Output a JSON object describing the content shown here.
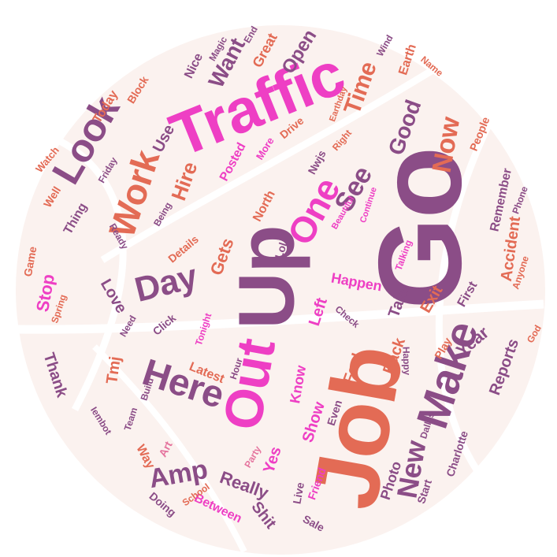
{
  "colors": {
    "background": "#ffffff",
    "ball": "#fbf2ef",
    "seam": "#ffffff",
    "pink": "#ee3fc4",
    "plum": "#8b4d87",
    "coral": "#e36b55",
    "rose": "#e5749e",
    "purple": "#9a4f9c"
  },
  "words": [
    {
      "text": "Go",
      "color": "plum",
      "weight": 20
    },
    {
      "text": "Job",
      "color": "coral",
      "weight": 18
    },
    {
      "text": "Traffic",
      "color": "pink",
      "weight": 16
    },
    {
      "text": "Up",
      "color": "plum",
      "weight": 15
    },
    {
      "text": "Out",
      "color": "pink",
      "weight": 12
    },
    {
      "text": "Make",
      "color": "plum",
      "weight": 11
    },
    {
      "text": "Here",
      "color": "plum",
      "weight": 11
    },
    {
      "text": "Look",
      "color": "plum",
      "weight": 10
    },
    {
      "text": "Work",
      "color": "coral",
      "weight": 10
    },
    {
      "text": "One",
      "color": "pink",
      "weight": 10
    },
    {
      "text": "Day",
      "color": "plum",
      "weight": 9
    },
    {
      "text": "New",
      "color": "plum",
      "weight": 9
    },
    {
      "text": "Now",
      "color": "coral",
      "weight": 8
    },
    {
      "text": "See",
      "color": "plum",
      "weight": 8
    },
    {
      "text": "Amp",
      "color": "plum",
      "weight": 8
    },
    {
      "text": "Time",
      "color": "coral",
      "weight": 8
    },
    {
      "text": "Good",
      "color": "plum",
      "weight": 7
    },
    {
      "text": "Want",
      "color": "plum",
      "weight": 7
    },
    {
      "text": "Hire",
      "color": "coral",
      "weight": 7
    },
    {
      "text": "Accident",
      "color": "coral",
      "weight": 6
    },
    {
      "text": "Open",
      "color": "plum",
      "weight": 6
    },
    {
      "text": "Reports",
      "color": "plum",
      "weight": 6
    },
    {
      "text": "Year",
      "color": "plum",
      "weight": 6
    },
    {
      "text": "Stop",
      "color": "pink",
      "weight": 6
    },
    {
      "text": "Gets",
      "color": "coral",
      "weight": 6
    },
    {
      "text": "Show",
      "color": "pink",
      "weight": 5
    },
    {
      "text": "Yes",
      "color": "pink",
      "weight": 5
    },
    {
      "text": "Love",
      "color": "plum",
      "weight": 5
    },
    {
      "text": "Happen",
      "color": "pink",
      "weight": 5
    },
    {
      "text": "Take",
      "color": "plum",
      "weight": 5
    },
    {
      "text": "Exit",
      "color": "coral",
      "weight": 5
    },
    {
      "text": "Left",
      "color": "pink",
      "weight": 5
    },
    {
      "text": "Feel",
      "color": "coral",
      "weight": 5
    },
    {
      "text": "Back",
      "color": "coral",
      "weight": 5
    },
    {
      "text": "Know",
      "color": "pink",
      "weight": 4
    },
    {
      "text": "Latest",
      "color": "coral",
      "weight": 4
    },
    {
      "text": "Tmj",
      "color": "coral",
      "weight": 5
    },
    {
      "text": "Really",
      "color": "plum",
      "weight": 5
    },
    {
      "text": "Shit",
      "color": "plum",
      "weight": 5
    },
    {
      "text": "Photo",
      "color": "plum",
      "weight": 4
    },
    {
      "text": "Great",
      "color": "coral",
      "weight": 4
    },
    {
      "text": "Today",
      "color": "coral",
      "weight": 4
    },
    {
      "text": "Use",
      "color": "plum",
      "weight": 4
    },
    {
      "text": "Posted",
      "color": "pink",
      "weight": 4
    },
    {
      "text": "Earth",
      "color": "coral",
      "weight": 4
    },
    {
      "text": "Block",
      "color": "coral",
      "weight": 3
    },
    {
      "text": "Nice",
      "color": "plum",
      "weight": 3
    },
    {
      "text": "Thank",
      "color": "plum",
      "weight": 4
    },
    {
      "text": "Well",
      "color": "coral",
      "weight": 3
    },
    {
      "text": "Thing",
      "color": "plum",
      "weight": 3
    },
    {
      "text": "North",
      "color": "coral",
      "weight": 3
    },
    {
      "text": "Lol",
      "color": "plum",
      "weight": 3
    },
    {
      "text": "Details",
      "color": "coral",
      "weight": 3
    },
    {
      "text": "First",
      "color": "plum",
      "weight": 3
    },
    {
      "text": "Remember",
      "color": "plum",
      "weight": 3
    },
    {
      "text": "Click",
      "color": "plum",
      "weight": 3
    },
    {
      "text": "Way",
      "color": "coral",
      "weight": 3
    },
    {
      "text": "Art",
      "color": "rose",
      "weight": 3
    },
    {
      "text": "Doing",
      "color": "plum",
      "weight": 3
    },
    {
      "text": "Between",
      "color": "pink",
      "weight": 3
    },
    {
      "text": "Sale",
      "color": "plum",
      "weight": 3
    },
    {
      "text": "Live",
      "color": "plum",
      "weight": 3
    },
    {
      "text": "Friend",
      "color": "pink",
      "weight": 3
    },
    {
      "text": "Start",
      "color": "plum",
      "weight": 3
    },
    {
      "text": "Charlotte",
      "color": "plum",
      "weight": 3
    },
    {
      "text": "Dallas",
      "color": "plum",
      "weight": 2
    },
    {
      "text": "Even",
      "color": "plum",
      "weight": 3
    },
    {
      "text": "Build",
      "color": "plum",
      "weight": 2
    },
    {
      "text": "Team",
      "color": "plum",
      "weight": 2
    },
    {
      "text": "Hour",
      "color": "plum",
      "weight": 2
    },
    {
      "text": "Play",
      "color": "coral",
      "weight": 3
    },
    {
      "text": "Happy",
      "color": "plum",
      "weight": 2
    },
    {
      "text": "God",
      "color": "coral",
      "weight": 2
    },
    {
      "text": "Party",
      "color": "rose",
      "weight": 2
    },
    {
      "text": "School",
      "color": "coral",
      "weight": 2
    },
    {
      "text": "Game",
      "color": "coral",
      "weight": 3
    },
    {
      "text": "Spring",
      "color": "coral",
      "weight": 2
    },
    {
      "text": "Need",
      "color": "plum",
      "weight": 2
    },
    {
      "text": "Tonight",
      "color": "pink",
      "weight": 2
    },
    {
      "text": "Check",
      "color": "plum",
      "weight": 2
    },
    {
      "text": "Talking",
      "color": "pink",
      "weight": 2
    },
    {
      "text": "Beautiful",
      "color": "pink",
      "weight": 2
    },
    {
      "text": "Continue",
      "color": "pink",
      "weight": 2
    },
    {
      "text": "Nwjs",
      "color": "plum",
      "weight": 2
    },
    {
      "text": "Right",
      "color": "coral",
      "weight": 2
    },
    {
      "text": "People",
      "color": "coral",
      "weight": 2
    },
    {
      "text": "Phone",
      "color": "plum",
      "weight": 2
    },
    {
      "text": "Anyone",
      "color": "coral",
      "weight": 2
    },
    {
      "text": "Drive",
      "color": "coral",
      "weight": 3
    },
    {
      "text": "More",
      "color": "pink",
      "weight": 2
    },
    {
      "text": "Being",
      "color": "plum",
      "weight": 2
    },
    {
      "text": "Ready",
      "color": "plum",
      "weight": 2
    },
    {
      "text": "Friday",
      "color": "plum",
      "weight": 2
    },
    {
      "text": "Watch",
      "color": "coral",
      "weight": 2
    },
    {
      "text": "Magic",
      "color": "plum",
      "weight": 2
    },
    {
      "text": "End",
      "color": "plum",
      "weight": 2
    },
    {
      "text": "Wind",
      "color": "plum",
      "weight": 2
    },
    {
      "text": "Name",
      "color": "coral",
      "weight": 2
    },
    {
      "text": "Earthday",
      "color": "coral",
      "weight": 2
    },
    {
      "text": "Iembot",
      "color": "plum",
      "weight": 2
    }
  ]
}
